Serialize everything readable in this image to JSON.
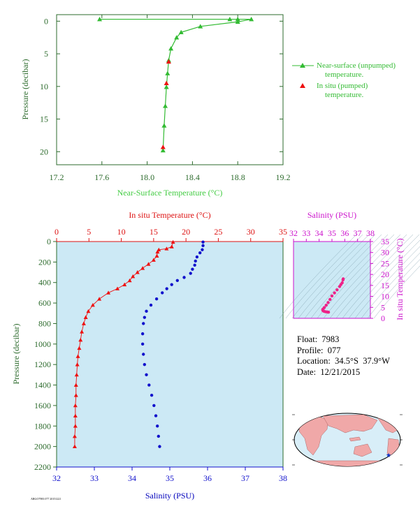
{
  "colors": {
    "near_surface": "#33bb33",
    "in_situ_temp": "#ee1111",
    "salinity": "#1111cc",
    "ts_diagram": "#cc11cc",
    "profile_bg": "#cce9f5",
    "ts_bg": "#cce9f5"
  },
  "info": {
    "float": "Float:  7983",
    "profile": "Profile:  077",
    "location": "Location:  34.5°S  37.9°W",
    "date": "Date:  12/21/2015"
  },
  "footer_code": "ARGO7983 077 20151221",
  "chart_data": [
    {
      "type": "line",
      "id": "near_surface_temp",
      "xlabel": "Near-Surface Temperature (°C)",
      "ylabel": "Pressure (decibar)",
      "xlim": [
        17.2,
        19.2
      ],
      "ylim": [
        22,
        -1
      ],
      "xticks": [
        "17.2",
        "17.6",
        "18.0",
        "18.4",
        "18.8",
        "19.2"
      ],
      "yticks": [
        "0",
        "5",
        "10",
        "15",
        "20"
      ],
      "legend": {
        "placement": "right",
        "entries": [
          {
            "label_line1": "Near-surface (unpumped)",
            "label_line2": "temperature."
          },
          {
            "label_line1": "In situ (pumped)",
            "label_line2": "temperature."
          }
        ]
      },
      "series": [
        {
          "name": "Near-surface (unpumped) temperature.",
          "marker": "triangle",
          "points": [
            [
              17.58,
              -0.3
            ],
            [
              18.73,
              -0.3
            ],
            [
              18.8,
              -0.3
            ],
            [
              18.92,
              -0.3
            ],
            [
              18.8,
              0.1
            ],
            [
              18.47,
              0.8
            ],
            [
              18.3,
              1.7
            ],
            [
              18.26,
              2.5
            ],
            [
              18.21,
              4.2
            ],
            [
              18.19,
              6.0
            ],
            [
              18.18,
              8.0
            ],
            [
              18.17,
              10.1
            ],
            [
              18.16,
              13.0
            ],
            [
              18.15,
              16.0
            ],
            [
              18.14,
              19.8
            ]
          ]
        },
        {
          "name": "In situ (pumped) temperature.",
          "marker": "triangle",
          "points": [
            [
              18.19,
              6.2
            ],
            [
              18.17,
              9.5
            ],
            [
              18.14,
              19.3
            ]
          ]
        }
      ]
    },
    {
      "type": "line",
      "id": "profile",
      "ylabel": "Pressure (decibar)",
      "ylim": [
        2200,
        0
      ],
      "yticks": [
        "0",
        "200",
        "400",
        "600",
        "800",
        "1000",
        "1200",
        "1400",
        "1600",
        "1800",
        "2000",
        "2200"
      ],
      "top_axis": {
        "label": "In situ Temperature (°C)",
        "range": [
          0,
          35
        ],
        "ticks": [
          "0",
          "5",
          "10",
          "15",
          "20",
          "25",
          "30",
          "35"
        ]
      },
      "bottom_axis": {
        "label": "Salinity (PSU)",
        "range": [
          32,
          38
        ],
        "ticks": [
          "32",
          "33",
          "34",
          "35",
          "36",
          "37",
          "38"
        ]
      },
      "series": [
        {
          "name": "In situ Temperature",
          "axis": "top",
          "marker": "triangle",
          "points": [
            [
              18.0,
              5
            ],
            [
              17.8,
              50
            ],
            [
              17.0,
              70
            ],
            [
              15.8,
              80
            ],
            [
              15.6,
              100
            ],
            [
              15.5,
              140
            ],
            [
              15.0,
              180
            ],
            [
              14.2,
              220
            ],
            [
              13.3,
              260
            ],
            [
              12.5,
              300
            ],
            [
              11.8,
              340
            ],
            [
              11.3,
              380
            ],
            [
              10.5,
              420
            ],
            [
              9.4,
              460
            ],
            [
              8.0,
              500
            ],
            [
              6.6,
              560
            ],
            [
              5.6,
              620
            ],
            [
              4.9,
              680
            ],
            [
              4.5,
              740
            ],
            [
              4.2,
              800
            ],
            [
              3.9,
              880
            ],
            [
              3.7,
              960
            ],
            [
              3.5,
              1040
            ],
            [
              3.3,
              1120
            ],
            [
              3.2,
              1200
            ],
            [
              3.1,
              1300
            ],
            [
              3.0,
              1400
            ],
            [
              3.0,
              1500
            ],
            [
              2.9,
              1600
            ],
            [
              2.9,
              1700
            ],
            [
              2.9,
              1800
            ],
            [
              2.8,
              1900
            ],
            [
              2.8,
              2000
            ]
          ]
        },
        {
          "name": "Salinity",
          "axis": "bottom",
          "marker": "dot",
          "points": [
            [
              35.88,
              5
            ],
            [
              35.88,
              40
            ],
            [
              35.86,
              80
            ],
            [
              35.8,
              110
            ],
            [
              35.72,
              150
            ],
            [
              35.68,
              190
            ],
            [
              35.66,
              230
            ],
            [
              35.6,
              270
            ],
            [
              35.55,
              310
            ],
            [
              35.38,
              350
            ],
            [
              35.2,
              380
            ],
            [
              35.05,
              420
            ],
            [
              34.92,
              460
            ],
            [
              34.8,
              500
            ],
            [
              34.65,
              560
            ],
            [
              34.5,
              620
            ],
            [
              34.38,
              680
            ],
            [
              34.33,
              740
            ],
            [
              34.3,
              800
            ],
            [
              34.28,
              900
            ],
            [
              34.28,
              1000
            ],
            [
              34.3,
              1100
            ],
            [
              34.33,
              1200
            ],
            [
              34.38,
              1300
            ],
            [
              34.45,
              1400
            ],
            [
              34.52,
              1500
            ],
            [
              34.58,
              1600
            ],
            [
              34.63,
              1700
            ],
            [
              34.67,
              1800
            ],
            [
              34.7,
              1900
            ],
            [
              34.73,
              2000
            ]
          ]
        }
      ]
    },
    {
      "type": "scatter",
      "id": "ts_diagram",
      "top_axis": {
        "label": "Salinity (PSU)",
        "range": [
          32,
          38
        ],
        "ticks": [
          "32",
          "33",
          "34",
          "35",
          "36",
          "37",
          "38"
        ]
      },
      "right_axis": {
        "label": "In situ Temperature (°C)",
        "range": [
          0,
          35
        ],
        "ticks": [
          "0",
          "5",
          "10",
          "15",
          "20",
          "25",
          "30",
          "35"
        ]
      },
      "grid": "density contours",
      "series": [
        {
          "name": "T-S",
          "points": [
            [
              35.88,
              18.0
            ],
            [
              35.86,
              17.5
            ],
            [
              35.8,
              16.2
            ],
            [
              35.7,
              15.4
            ],
            [
              35.6,
              14.5
            ],
            [
              35.4,
              13.0
            ],
            [
              35.2,
              11.6
            ],
            [
              35.0,
              10.2
            ],
            [
              34.85,
              8.6
            ],
            [
              34.7,
              7.2
            ],
            [
              34.55,
              6.0
            ],
            [
              34.4,
              4.9
            ],
            [
              34.3,
              4.2
            ],
            [
              34.28,
              3.9
            ],
            [
              34.3,
              3.5
            ],
            [
              34.38,
              3.2
            ],
            [
              34.5,
              3.0
            ],
            [
              34.63,
              2.9
            ],
            [
              34.73,
              2.8
            ]
          ]
        }
      ]
    }
  ]
}
